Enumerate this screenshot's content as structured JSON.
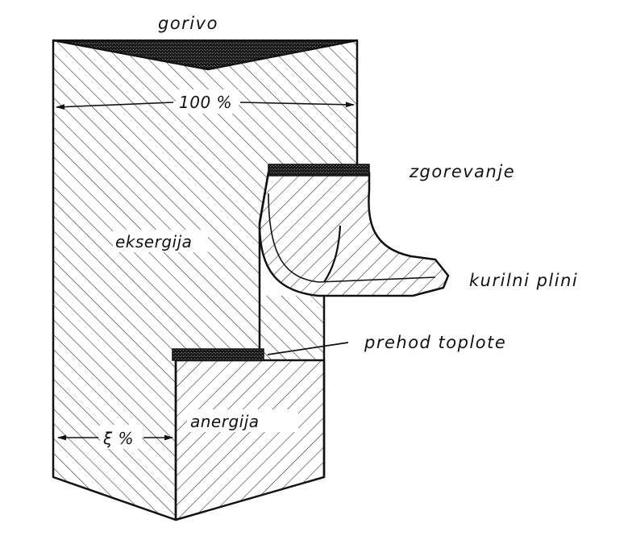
{
  "diagram": {
    "labels": {
      "fuel": "gorivo",
      "total_percent": "100 %",
      "combustion": "zgorevanje",
      "exergy": "eksergija",
      "flue_gases": "kurilni plini",
      "heat_transfer": "prehod toplote",
      "anergy": "anergija",
      "efficiency_percent": "ξ %"
    },
    "colors": {
      "ink": "#111111",
      "background": "#ffffff",
      "hatch": "#222222",
      "noise_fill": "#333333"
    },
    "icons": {
      "arrow_head": "arrowhead"
    }
  }
}
